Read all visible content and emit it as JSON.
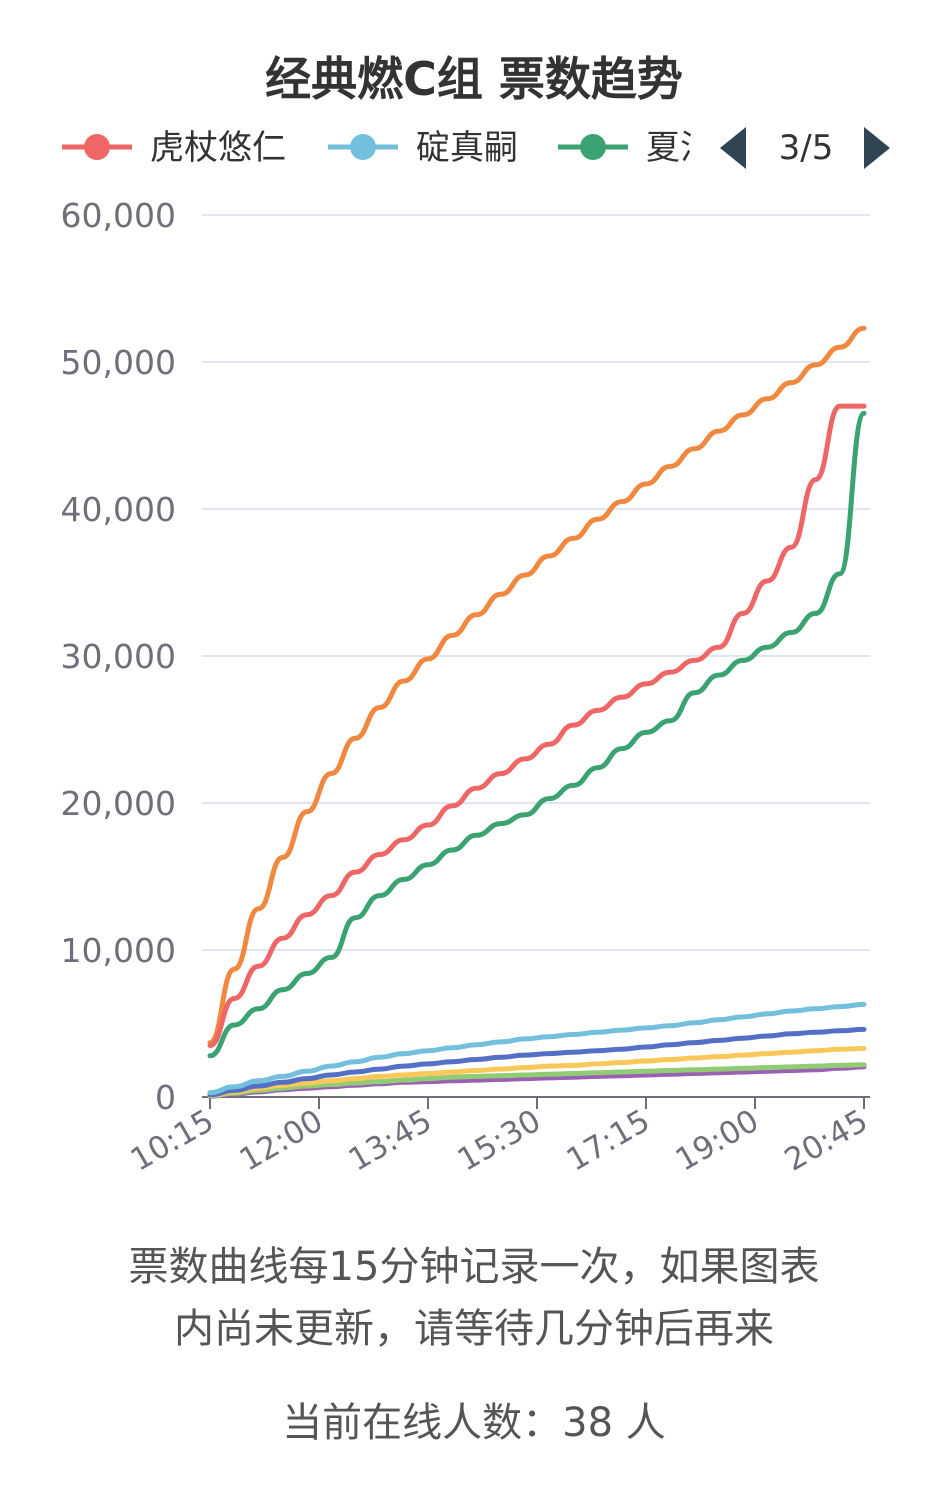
{
  "chart_data": {
    "type": "line",
    "title": "经典燃C组 票数趋势",
    "x_ticks": [
      "10:15",
      "12:00",
      "13:45",
      "15:30",
      "17:15",
      "19:00",
      "20:45"
    ],
    "x_range": [
      "10:15",
      "20:45"
    ],
    "ylim": [
      0,
      60000
    ],
    "y_ticks": [
      0,
      10000,
      20000,
      30000,
      40000,
      50000,
      60000
    ],
    "y_tick_labels": [
      "0",
      "10,000",
      "20,000",
      "30,000",
      "40,000",
      "50,000",
      "60,000"
    ],
    "grid": true,
    "legend": {
      "placement": "top",
      "visible_entries": [
        "虎杖悠仁",
        "碇真嗣",
        "夏油杰"
      ],
      "page_label": "3/5"
    },
    "series": [
      {
        "name": "unlabeled-orange",
        "color": "#f0883f",
        "values": [
          3700,
          8700,
          12800,
          16300,
          19400,
          22000,
          24400,
          26500,
          28300,
          29800,
          31400,
          32800,
          34200,
          35500,
          36800,
          38000,
          39300,
          40500,
          41700,
          42900,
          44100,
          45300,
          46400,
          47500,
          48600,
          49800,
          51000,
          52300
        ]
      },
      {
        "name": "虎杖悠仁",
        "color": "#ee6666",
        "values": [
          3500,
          6700,
          8900,
          10800,
          12400,
          13700,
          15300,
          16500,
          17500,
          18500,
          19800,
          21000,
          22000,
          23000,
          24000,
          25300,
          26300,
          27200,
          28100,
          28900,
          29700,
          30600,
          32900,
          35100,
          37400,
          42000,
          47000,
          47000
        ]
      },
      {
        "name": "夏油杰",
        "color": "#3ba272",
        "values": [
          2800,
          4900,
          6000,
          7300,
          8400,
          9500,
          12200,
          13700,
          14800,
          15800,
          16800,
          17800,
          18600,
          19200,
          20300,
          21200,
          22400,
          23700,
          24800,
          25600,
          27500,
          28700,
          29700,
          30600,
          31600,
          32900,
          35600,
          46500
        ]
      },
      {
        "name": "碇真嗣",
        "color": "#73c0de",
        "values": [
          300,
          700,
          1100,
          1400,
          1750,
          2100,
          2400,
          2700,
          2950,
          3150,
          3350,
          3550,
          3750,
          3950,
          4100,
          4250,
          4400,
          4550,
          4700,
          4850,
          5050,
          5250,
          5450,
          5650,
          5850,
          6000,
          6150,
          6300
        ]
      },
      {
        "name": "unlabeled-blue",
        "color": "#5470c6",
        "values": [
          150,
          450,
          750,
          1000,
          1250,
          1500,
          1700,
          1900,
          2100,
          2250,
          2400,
          2550,
          2700,
          2850,
          2950,
          3050,
          3150,
          3250,
          3400,
          3550,
          3700,
          3850,
          4000,
          4150,
          4300,
          4400,
          4500,
          4600
        ]
      },
      {
        "name": "unlabeled-yellow",
        "color": "#fac858",
        "values": [
          100,
          350,
          600,
          800,
          950,
          1100,
          1250,
          1400,
          1500,
          1600,
          1700,
          1800,
          1900,
          2000,
          2100,
          2150,
          2250,
          2350,
          2450,
          2550,
          2650,
          2750,
          2850,
          2950,
          3050,
          3150,
          3250,
          3300
        ]
      },
      {
        "name": "unlabeled-green",
        "color": "#91cc75",
        "values": [
          80,
          250,
          450,
          600,
          750,
          850,
          950,
          1050,
          1150,
          1250,
          1350,
          1400,
          1450,
          1500,
          1550,
          1600,
          1650,
          1700,
          1750,
          1800,
          1850,
          1900,
          1950,
          2000,
          2050,
          2100,
          2150,
          2200
        ]
      },
      {
        "name": "unlabeled-purple",
        "color": "#9a60b4",
        "values": [
          50,
          200,
          350,
          500,
          600,
          700,
          800,
          900,
          1000,
          1050,
          1100,
          1150,
          1200,
          1250,
          1300,
          1350,
          1400,
          1450,
          1500,
          1550,
          1600,
          1650,
          1700,
          1750,
          1800,
          1850,
          1950,
          2050
        ]
      }
    ]
  },
  "note_text": "票数曲线每15分钟记录一次，如果图表内尚未更新，请等待几分钟后再来",
  "online_label": "当前在线人数：38 人",
  "colors": {
    "pager_arrow": "#2f4554",
    "grid": "#e0e6f1",
    "axis": "#6e7079"
  }
}
